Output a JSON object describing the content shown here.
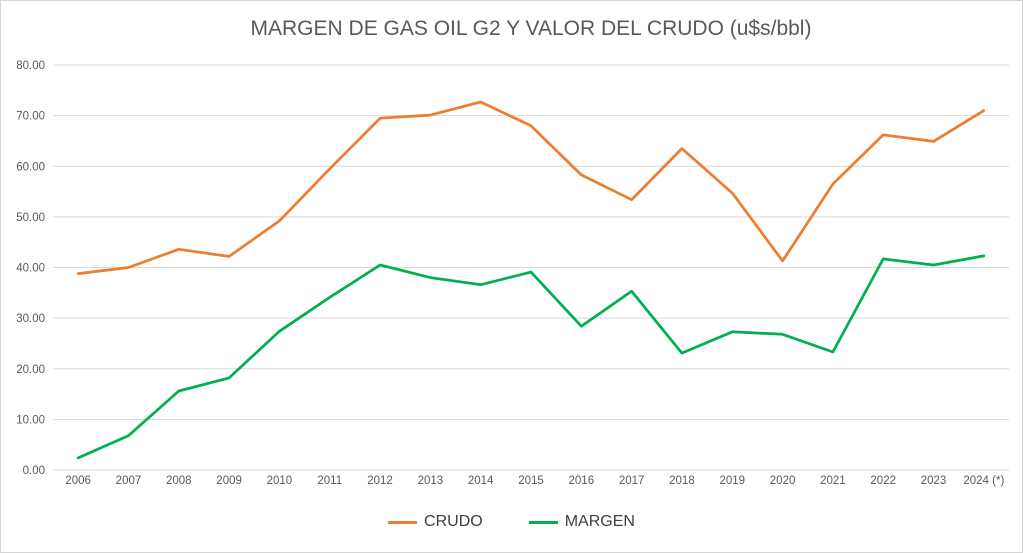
{
  "chart_data": {
    "type": "line",
    "title": "MARGEN DE GAS OIL G2 Y VALOR DEL CRUDO (u$s/bbl)",
    "categories": [
      "2006",
      "2007",
      "2008",
      "2009",
      "2010",
      "2011",
      "2012",
      "2013",
      "2014",
      "2015",
      "2016",
      "2017",
      "2018",
      "2019",
      "2020",
      "2021",
      "2022",
      "2023",
      "2024 (*)"
    ],
    "series": [
      {
        "name": "CRUDO",
        "color": "#ED7D31",
        "values": [
          38.8,
          40.0,
          43.6,
          42.2,
          49.2,
          59.5,
          69.5,
          70.1,
          72.7,
          68.0,
          58.3,
          53.4,
          63.5,
          54.7,
          41.3,
          56.5,
          66.2,
          64.9,
          71.0
        ]
      },
      {
        "name": "MARGEN",
        "color": "#00B050",
        "values": [
          2.4,
          6.8,
          15.6,
          18.2,
          27.4,
          34.1,
          40.5,
          38.0,
          36.6,
          39.1,
          28.4,
          35.3,
          23.1,
          27.3,
          26.8,
          23.3,
          41.7,
          40.5,
          42.3
        ]
      }
    ],
    "ylim": [
      0,
      80
    ],
    "y_ticks": [
      "0.00",
      "10.00",
      "20.00",
      "30.00",
      "40.00",
      "50.00",
      "60.00",
      "70.00",
      "80.00"
    ],
    "xlabel": "",
    "ylabel": "",
    "grid": true,
    "legend_position": "bottom"
  },
  "style": {
    "gridline_color": "#D9D9D9",
    "axis_text_color": "#595959",
    "title_color": "#595959",
    "legend_text_color": "#404040",
    "background": "#FFFFFF"
  }
}
